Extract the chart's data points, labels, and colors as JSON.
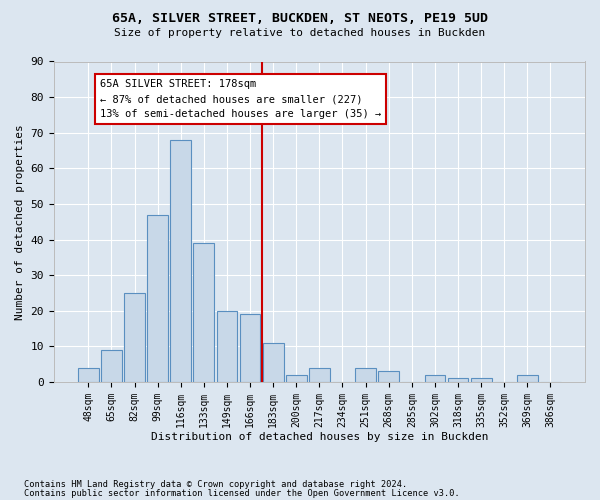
{
  "title1": "65A, SILVER STREET, BUCKDEN, ST NEOTS, PE19 5UD",
  "title2": "Size of property relative to detached houses in Buckden",
  "xlabel": "Distribution of detached houses by size in Buckden",
  "ylabel": "Number of detached properties",
  "bar_labels": [
    "48sqm",
    "65sqm",
    "82sqm",
    "99sqm",
    "116sqm",
    "133sqm",
    "149sqm",
    "166sqm",
    "183sqm",
    "200sqm",
    "217sqm",
    "234sqm",
    "251sqm",
    "268sqm",
    "285sqm",
    "302sqm",
    "318sqm",
    "335sqm",
    "352sqm",
    "369sqm",
    "386sqm"
  ],
  "bar_values": [
    4,
    9,
    25,
    47,
    68,
    39,
    20,
    19,
    11,
    2,
    4,
    0,
    4,
    3,
    0,
    2,
    1,
    1,
    0,
    2,
    0
  ],
  "bar_color": "#c8d8e8",
  "bar_edge_color": "#5a8fc0",
  "vline_x": 7.5,
  "vline_color": "#cc0000",
  "annotation_text": "65A SILVER STREET: 178sqm\n← 87% of detached houses are smaller (227)\n13% of semi-detached houses are larger (35) →",
  "annotation_box_color": "#cc0000",
  "ylim": [
    0,
    90
  ],
  "yticks": [
    0,
    10,
    20,
    30,
    40,
    50,
    60,
    70,
    80,
    90
  ],
  "bg_color": "#dce6f0",
  "plot_bg_color": "#dce6f0",
  "footer1": "Contains HM Land Registry data © Crown copyright and database right 2024.",
  "footer2": "Contains public sector information licensed under the Open Government Licence v3.0."
}
